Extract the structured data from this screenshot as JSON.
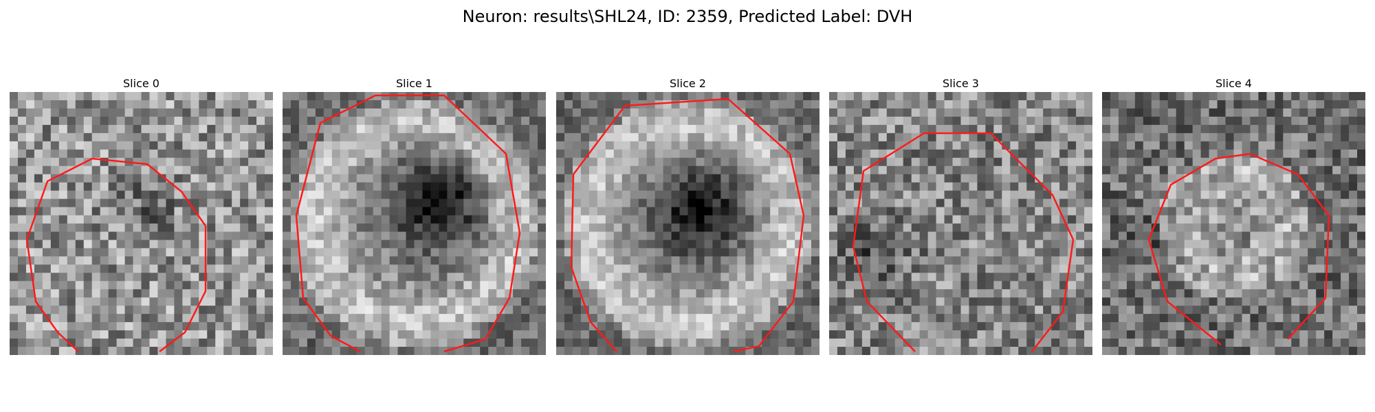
{
  "figure": {
    "title": "Neuron: results\\SHL24, ID: 2359, Predicted Label: DVH"
  },
  "slices": [
    {
      "title": "Slice 0"
    },
    {
      "title": "Slice 1"
    },
    {
      "title": "Slice 2"
    },
    {
      "title": "Slice 3"
    },
    {
      "title": "Slice 4"
    }
  ],
  "colors": {
    "contour": "#ff1a1a",
    "background": "#ffffff"
  }
}
